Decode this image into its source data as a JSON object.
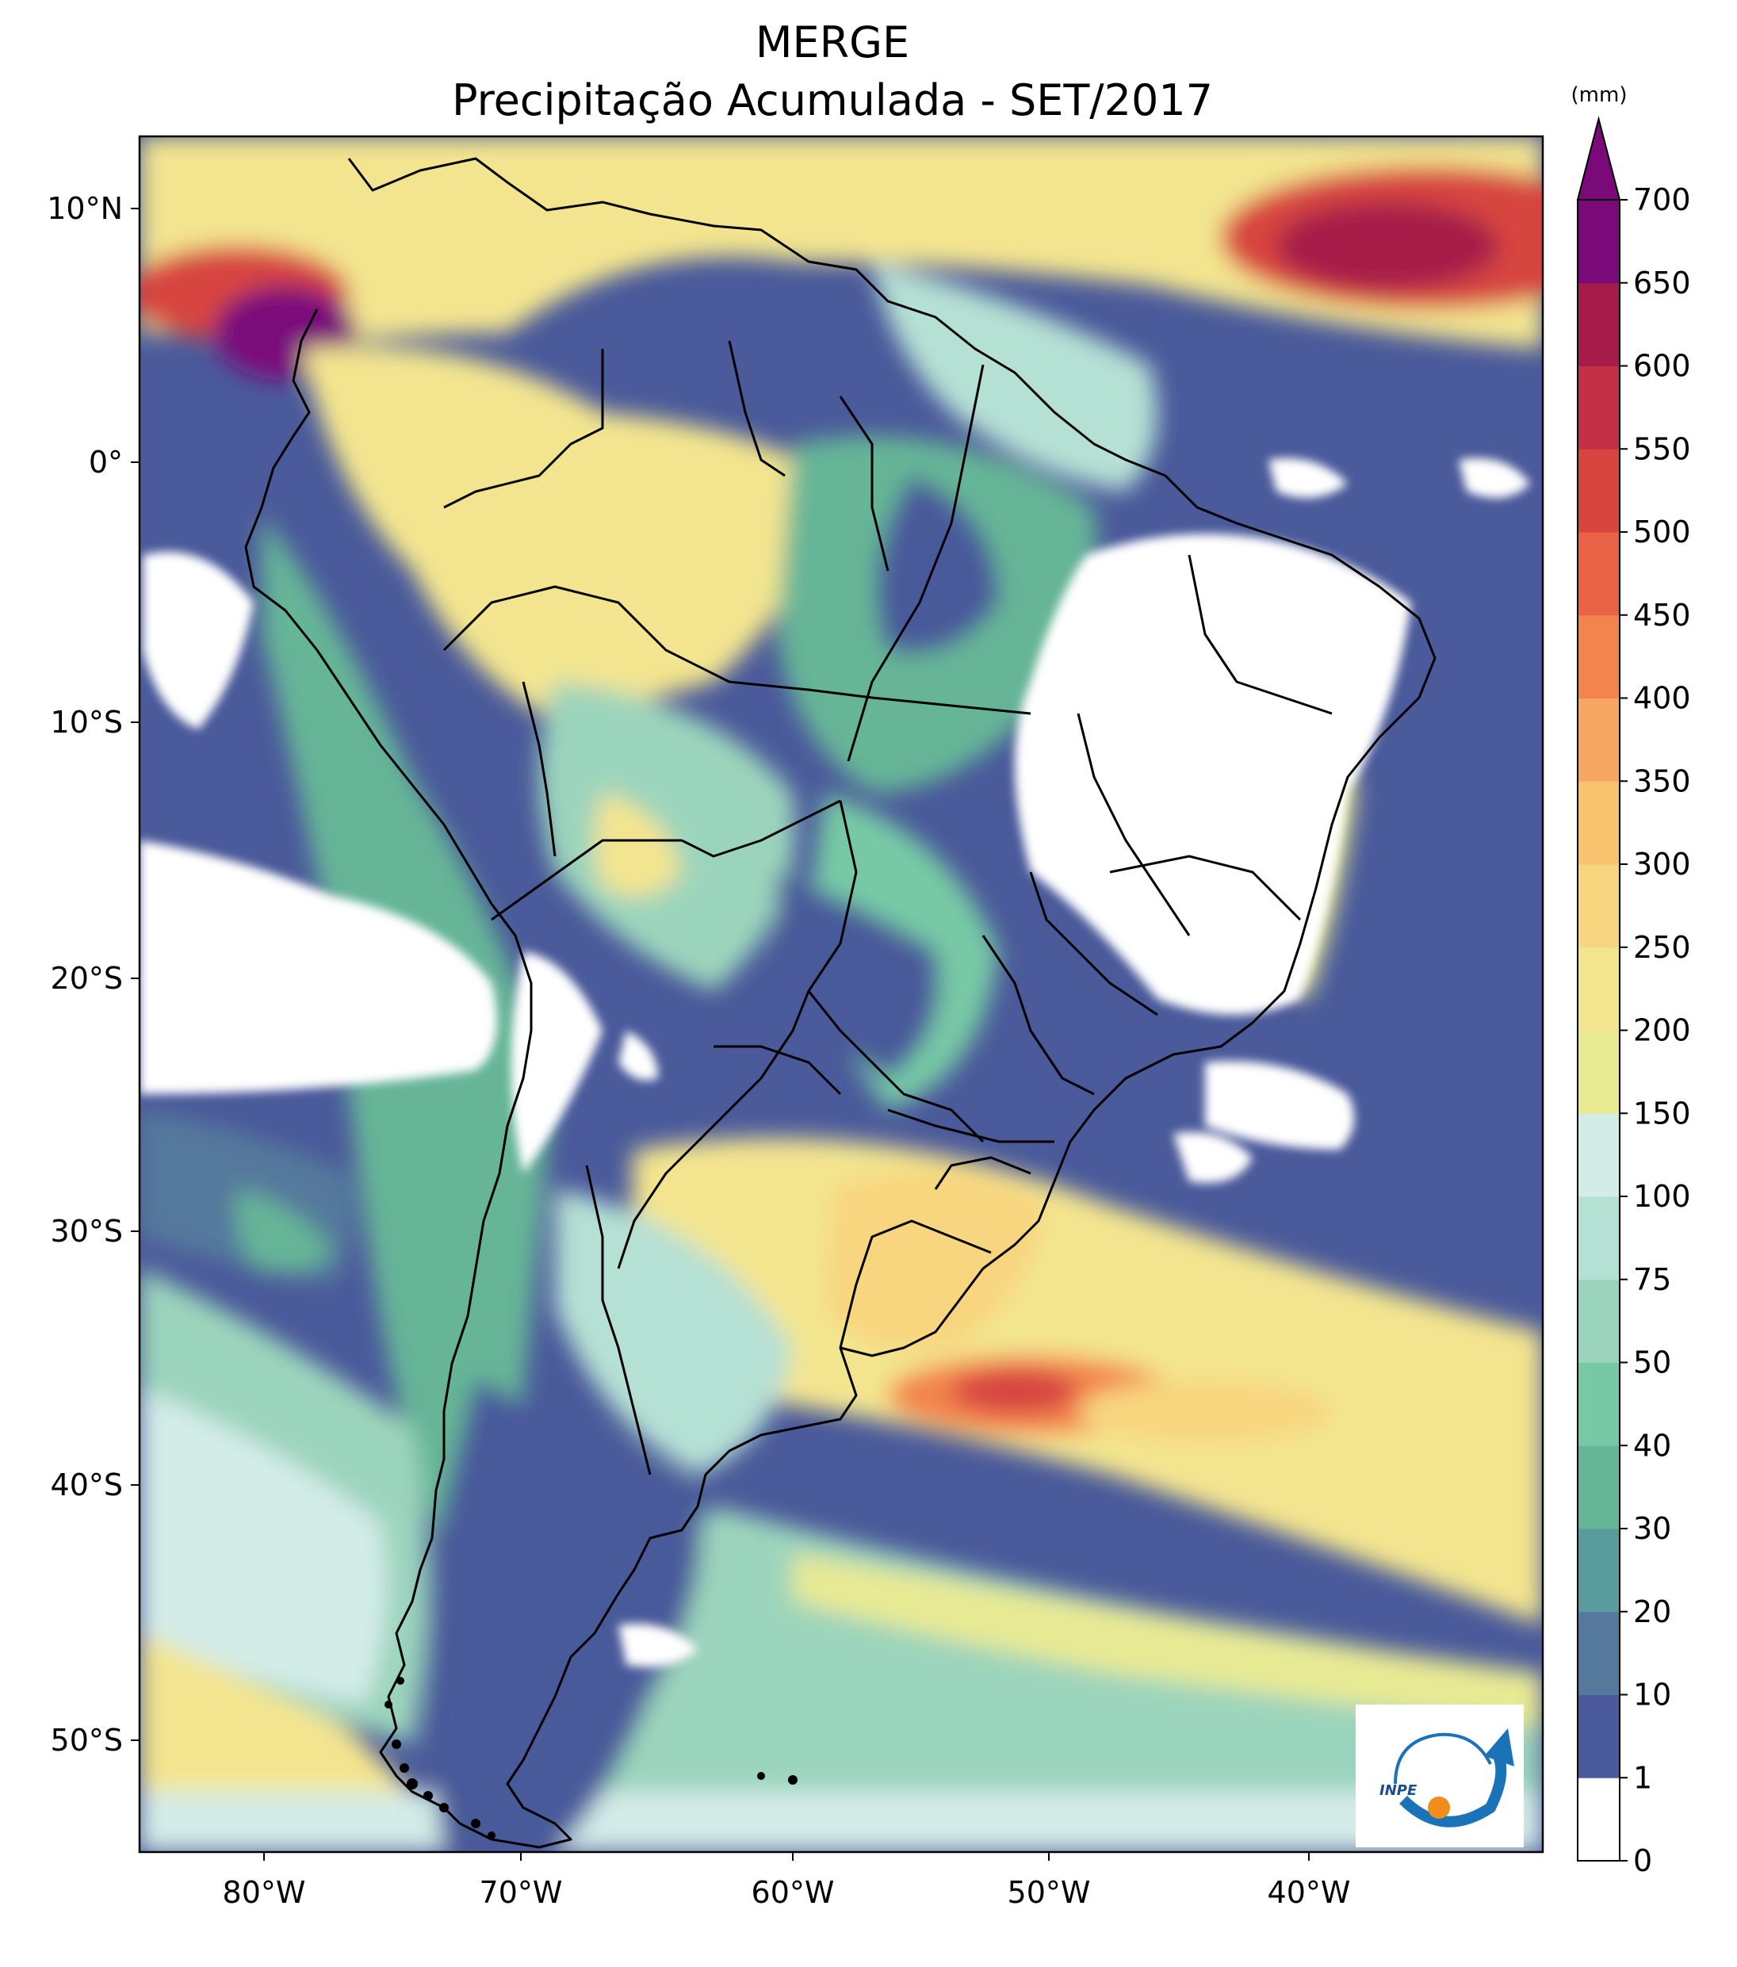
{
  "title": {
    "line1": "MERGE",
    "line2": "Precipitação Acumulada - SET/2017"
  },
  "axes": {
    "lon_labels": [
      "80°W",
      "70°W",
      "60°W",
      "50°W",
      "40°W"
    ],
    "lat_labels": [
      "10°N",
      "0°",
      "10°S",
      "20°S",
      "30°S",
      "40°S",
      "50°S"
    ]
  },
  "colorbar": {
    "unit": "(mm)",
    "levels": [
      "0",
      "1",
      "10",
      "20",
      "30",
      "40",
      "50",
      "75",
      "100",
      "150",
      "200",
      "250",
      "300",
      "350",
      "400",
      "450",
      "500",
      "550",
      "600",
      "650",
      "700"
    ],
    "colors": [
      "#ffffff",
      "#4a5a9a",
      "#55799c",
      "#5a9c9e",
      "#66b597",
      "#77c9a6",
      "#9bd4bc",
      "#b5e0d4",
      "#d3ece8",
      "#e8ea93",
      "#f3e58f",
      "#f8d67f",
      "#f9c26e",
      "#f7a663",
      "#f3844d",
      "#e96245",
      "#d7453f",
      "#c32f45",
      "#a51b4a",
      "#7a0a7a"
    ],
    "extend_color": "#7a0a7a"
  },
  "logo": {
    "text": "INPE"
  }
}
